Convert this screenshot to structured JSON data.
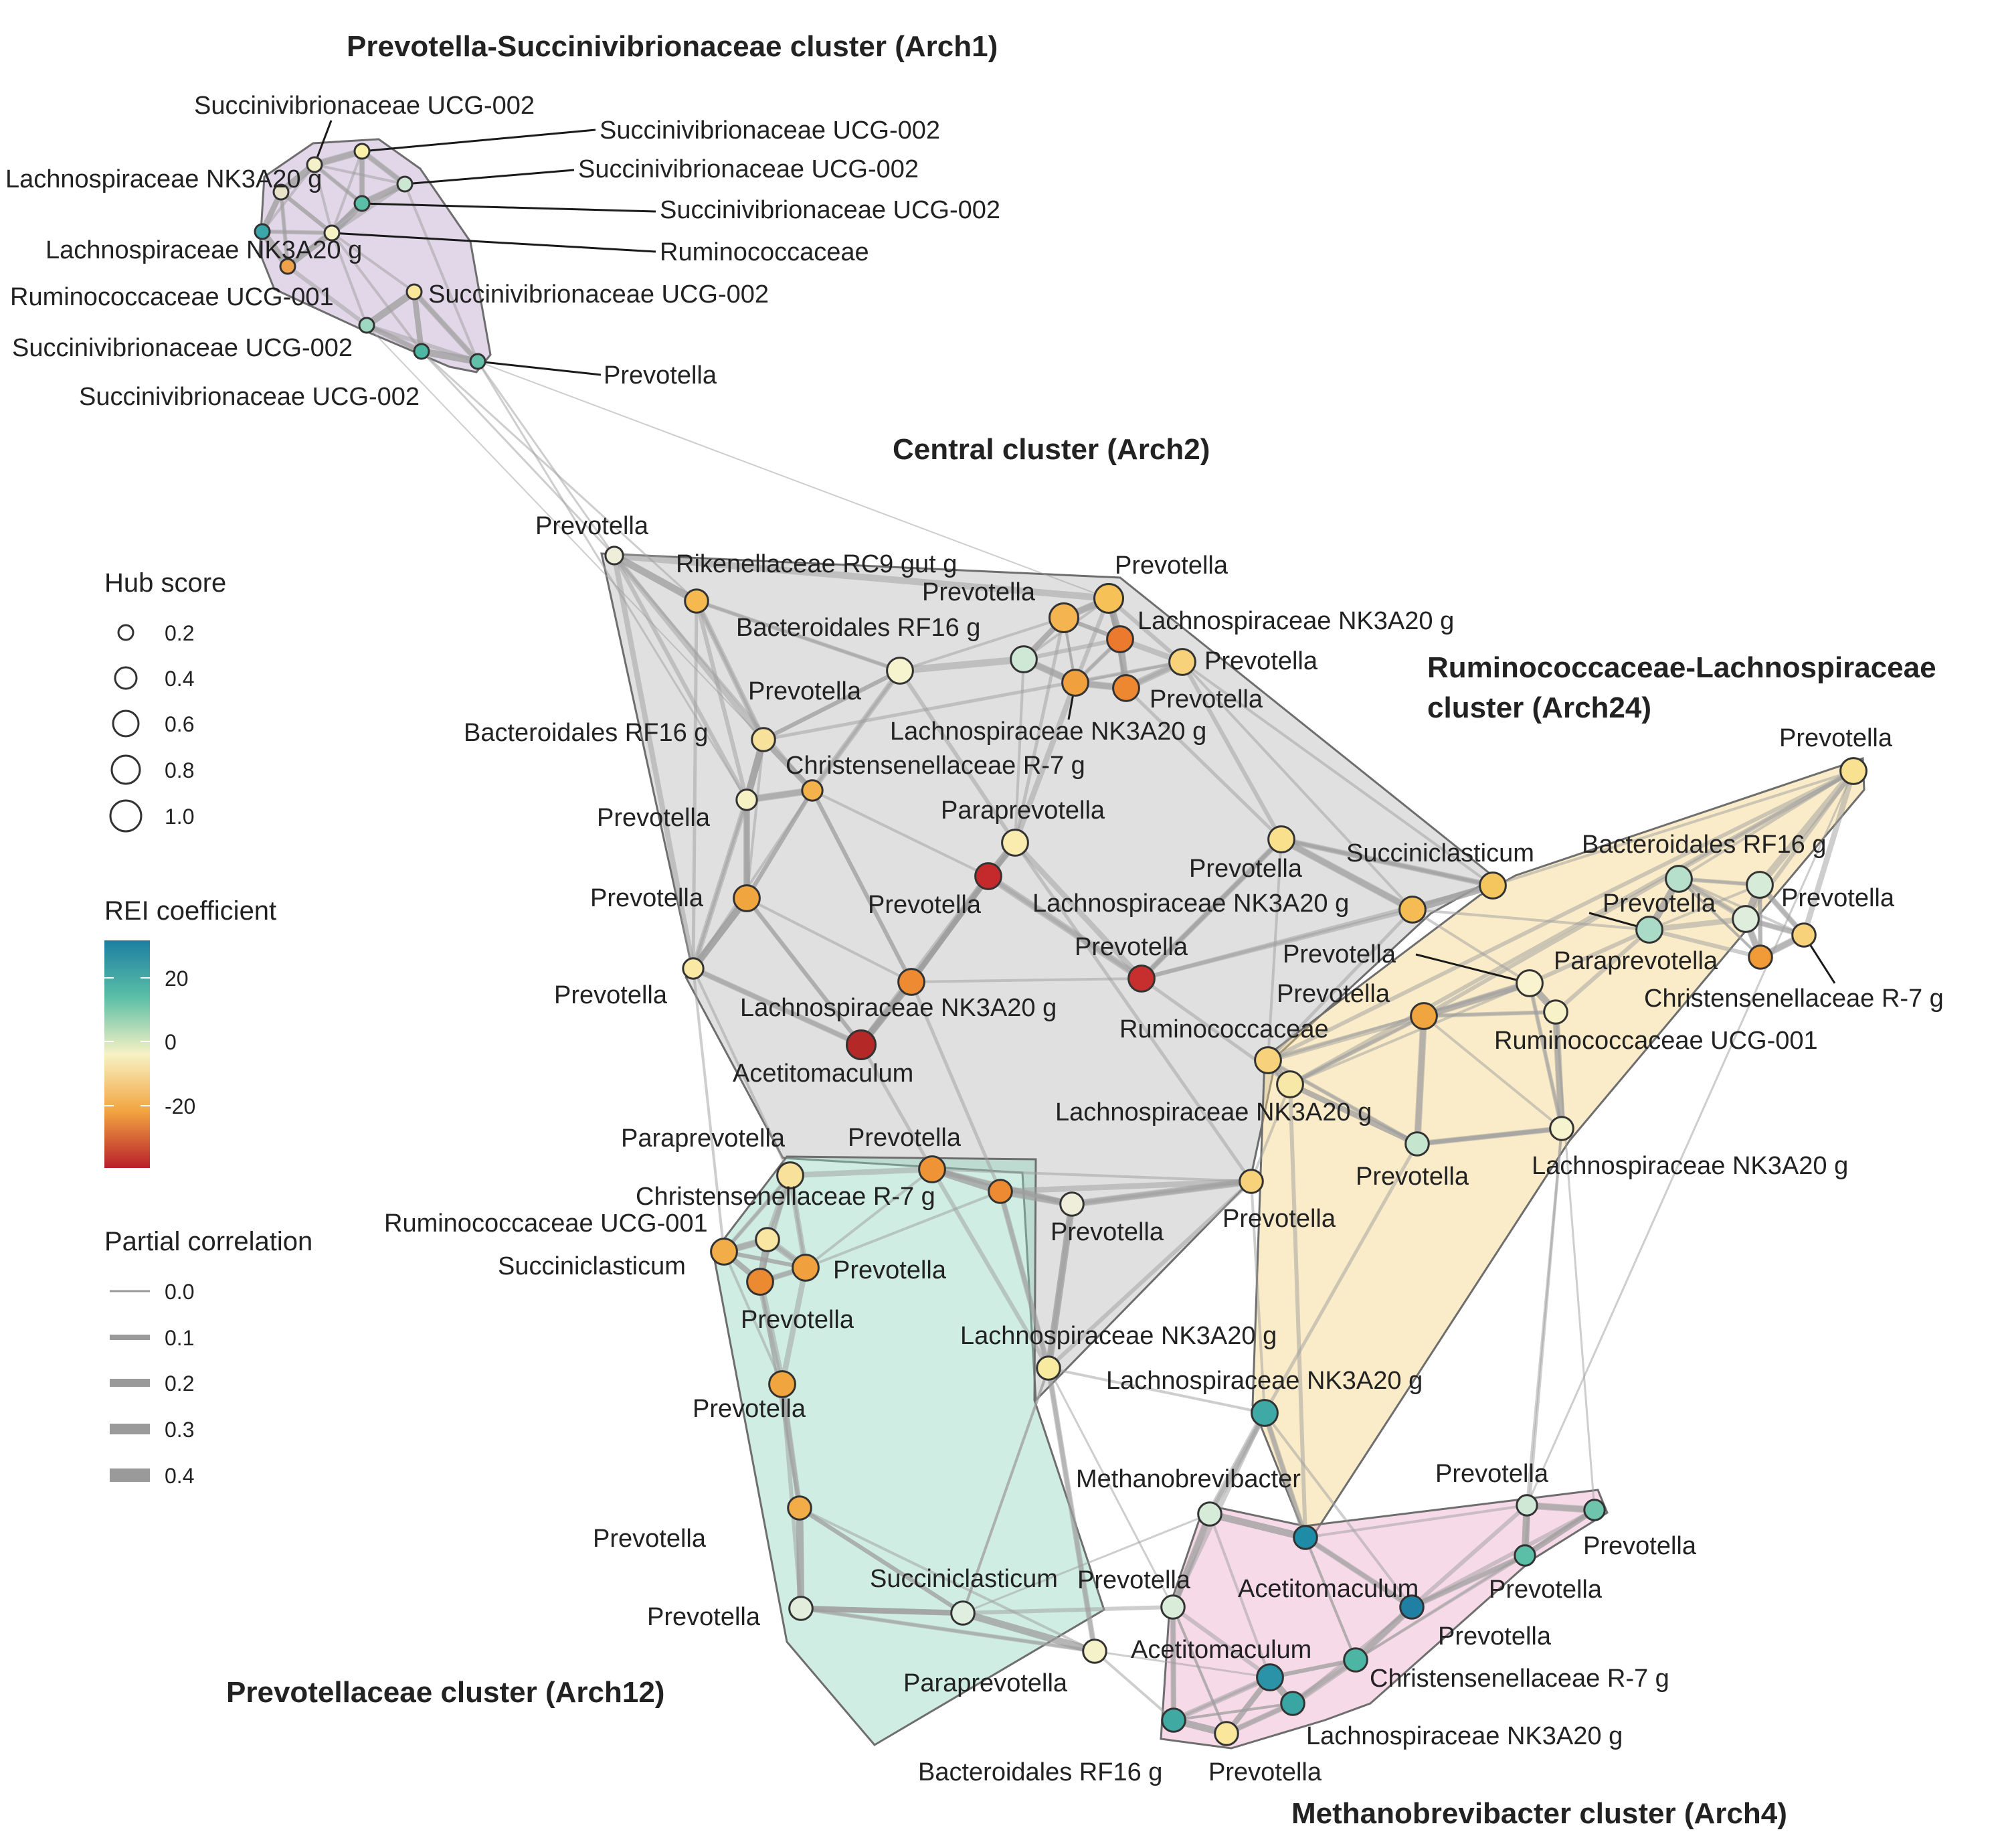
{
  "clusters": [
    {
      "id": "arch1",
      "title": "Prevotella-Succinivibrionaceae cluster (Arch1)",
      "fill": "#b9a0c9"
    },
    {
      "id": "arch2",
      "title": "Central cluster (Arch2)",
      "fill": "#b4b4b4"
    },
    {
      "id": "arch24",
      "title": "Ruminococcaceae-Lachnospiraceae cluster (Arch24)",
      "fill": "#f2d27e"
    },
    {
      "id": "arch12",
      "title": "Prevotellaceae cluster (Arch12)",
      "fill": "#8fd3bf"
    },
    {
      "id": "arch4",
      "title": "Methanobrevibacter cluster (Arch4)",
      "fill": "#eba6c8"
    }
  ],
  "nodes": [
    {
      "id": "a1n1",
      "cluster": "arch1",
      "label": "Succinivibrionaceae UCG-002",
      "color": "#f4f0c8",
      "hub": 0.15
    },
    {
      "id": "a1n2",
      "cluster": "arch1",
      "label": "Succinivibrionaceae UCG-002",
      "color": "#fbf1a8",
      "hub": 0.15
    },
    {
      "id": "a1n3",
      "cluster": "arch1",
      "label": "Succinivibrionaceae UCG-002",
      "color": "#cde8d2",
      "hub": 0.15
    },
    {
      "id": "a1n4",
      "cluster": "arch1",
      "label": "Succinivibrionaceae UCG-002",
      "color": "#5bbfa7",
      "hub": 0.15
    },
    {
      "id": "a1n5",
      "cluster": "arch1",
      "label": "Lachnospiraceae NK3A20 g",
      "color": "#e8e2c8",
      "hub": 0.15
    },
    {
      "id": "a1n6",
      "cluster": "arch1",
      "label": "Lachnospiraceae NK3A20 g",
      "color": "#3aa6a9",
      "hub": 0.15
    },
    {
      "id": "a1n7",
      "cluster": "arch1",
      "label": "Ruminococcaceae",
      "color": "#f7f2c4",
      "hub": 0.15
    },
    {
      "id": "a1n8",
      "cluster": "arch1",
      "label": "Ruminococcaceae UCG-001",
      "color": "#f0a24a",
      "hub": 0.15
    },
    {
      "id": "a1n9",
      "cluster": "arch1",
      "label": "Succinivibrionaceae UCG-002",
      "color": "#fbe79c",
      "hub": 0.15
    },
    {
      "id": "a1n10",
      "cluster": "arch1",
      "label": "Succinivibrionaceae UCG-002",
      "color": "#9ed8c2",
      "hub": 0.15
    },
    {
      "id": "a1n11",
      "cluster": "arch1",
      "label": "Succinivibrionaceae UCG-002",
      "color": "#4eb7a4",
      "hub": 0.15
    },
    {
      "id": "a1n12",
      "cluster": "arch1",
      "label": "Prevotella",
      "color": "#63c0a8",
      "hub": 0.15
    },
    {
      "id": "a2n1",
      "cluster": "arch2",
      "label": "Prevotella",
      "color": "#eeeedb",
      "hub": 0.2
    },
    {
      "id": "a2n2",
      "cluster": "arch2",
      "label": "Rikenellaceae RC9 gut g",
      "color": "#f5b94f",
      "hub": 0.3
    },
    {
      "id": "a2n3",
      "cluster": "arch2",
      "label": "Prevotella",
      "color": "#f6c257",
      "hub": 0.4
    },
    {
      "id": "a2n4",
      "cluster": "arch2",
      "label": "Prevotella",
      "color": "#f4b551",
      "hub": 0.4
    },
    {
      "id": "a2n5",
      "cluster": "arch2",
      "label": "Lachnospiraceae NK3A20 g",
      "color": "#eb7a2e",
      "hub": 0.35
    },
    {
      "id": "a2n6",
      "cluster": "arch2",
      "label": "Bacteroidales RF16 g",
      "color": "#cfe8d6",
      "hub": 0.35
    },
    {
      "id": "a2n7",
      "cluster": "arch2",
      "label": "Prevotella",
      "color": "#f8d27a",
      "hub": 0.35
    },
    {
      "id": "a2n8",
      "cluster": "arch2",
      "label": "Lachnospiraceae NK3A20 g",
      "color": "#f0a03d",
      "hub": 0.35
    },
    {
      "id": "a2n9",
      "cluster": "arch2",
      "label": "Prevotella",
      "color": "#ee8830",
      "hub": 0.35
    },
    {
      "id": "a2n10",
      "cluster": "arch2",
      "label": "Prevotella",
      "color": "#f6f3cf",
      "hub": 0.35
    },
    {
      "id": "a2n11",
      "cluster": "arch2",
      "label": "Bacteroidales RF16 g",
      "color": "#f8e19a",
      "hub": 0.3
    },
    {
      "id": "a2n12",
      "cluster": "arch2",
      "label": "Christensenellaceae R-7 g",
      "color": "#f3b24c",
      "hub": 0.25
    },
    {
      "id": "a2n13",
      "cluster": "arch2",
      "label": "Prevotella",
      "color": "#f7f2c4",
      "hub": 0.25
    },
    {
      "id": "a2n14",
      "cluster": "arch2",
      "label": "Paraprevotella",
      "color": "#faecae",
      "hub": 0.35
    },
    {
      "id": "a2n15",
      "cluster": "arch2",
      "label": "Prevotella",
      "color": "#c42a2c",
      "hub": 0.35
    },
    {
      "id": "a2n16",
      "cluster": "arch2",
      "label": "Prevotella",
      "color": "#f0a53f",
      "hub": 0.35
    },
    {
      "id": "a2n17",
      "cluster": "arch2",
      "label": "Prevotella",
      "color": "#fae9a5",
      "hub": 0.25
    },
    {
      "id": "a2n18",
      "cluster": "arch2",
      "label": "Prevotella",
      "color": "#f8e08c",
      "hub": 0.35
    },
    {
      "id": "a2n19",
      "cluster": "arch2",
      "label": "Succiniclasticum",
      "color": "#f6c65e",
      "hub": 0.35
    },
    {
      "id": "a2n20",
      "cluster": "arch2",
      "label": "Lachnospiraceae NK3A20 g",
      "color": "#f4bc52",
      "hub": 0.35
    },
    {
      "id": "a2n21",
      "cluster": "arch2",
      "label": "Prevotella",
      "color": "#c62f2d",
      "hub": 0.35
    },
    {
      "id": "a2n22",
      "cluster": "arch2",
      "label": "Lachnospiraceae NK3A20 g",
      "color": "#ed8a32",
      "hub": 0.35
    },
    {
      "id": "a2n23",
      "cluster": "arch2",
      "label": "Acetitomaculum",
      "color": "#b52828",
      "hub": 0.4
    },
    {
      "id": "a24n1",
      "cluster": "arch24",
      "label": "Prevotella",
      "color": "#f8e191",
      "hub": 0.35
    },
    {
      "id": "a24n2",
      "cluster": "arch24",
      "label": "Bacteroidales RF16 g",
      "color": "#b7e0cc",
      "hub": 0.35
    },
    {
      "id": "a24n3",
      "cluster": "arch24",
      "label": "Prevotella",
      "color": "#d6ebd8",
      "hub": 0.35
    },
    {
      "id": "a24n4",
      "cluster": "arch24",
      "label": "Prevotella",
      "color": "#a9dbc6",
      "hub": 0.35
    },
    {
      "id": "a24n5",
      "cluster": "arch24",
      "label": "Prevotella",
      "color": "#dfeedc",
      "hub": 0.35
    },
    {
      "id": "a24n6",
      "cluster": "arch24",
      "label": "Christensenellaceae R-7 g",
      "color": "#f8d27a",
      "hub": 0.3
    },
    {
      "id": "a24n7",
      "cluster": "arch24",
      "label": "Paraprevotella",
      "color": "#f09a38",
      "hub": 0.3
    },
    {
      "id": "a24n8",
      "cluster": "arch24",
      "label": "Prevotella",
      "color": "#f9f4cf",
      "hub": 0.35
    },
    {
      "id": "a24n9",
      "cluster": "arch24",
      "label": "Prevotella",
      "color": "#f0a53f",
      "hub": 0.35
    },
    {
      "id": "a24n10",
      "cluster": "arch24",
      "label": "Ruminococcaceae UCG-001",
      "color": "#f7f2c8",
      "hub": 0.3
    },
    {
      "id": "a24n11",
      "cluster": "arch24",
      "label": "Ruminococcaceae",
      "color": "#f8d27a",
      "hub": 0.35
    },
    {
      "id": "a24n12",
      "cluster": "arch24",
      "label": "Lachnospiraceae NK3A20 g",
      "color": "#f8e8a8",
      "hub": 0.35
    },
    {
      "id": "a24n13",
      "cluster": "arch24",
      "label": "Prevotella",
      "color": "#c6e5cf",
      "hub": 0.3
    },
    {
      "id": "a24n14",
      "cluster": "arch24",
      "label": "Lachnospiraceae NK3A20 g",
      "color": "#f6f3cf",
      "hub": 0.3
    },
    {
      "id": "a12n1",
      "cluster": "arch12",
      "label": "Paraprevotella",
      "color": "#f8e19a",
      "hub": 0.35
    },
    {
      "id": "a12n2",
      "cluster": "arch12",
      "label": "Prevotella",
      "color": "#ee9336",
      "hub": 0.35
    },
    {
      "id": "a12n3",
      "cluster": "arch12",
      "label": "Christensenellaceae R-7 g",
      "color": "#ee8a32",
      "hub": 0.3
    },
    {
      "id": "a12n4",
      "cluster": "arch12",
      "label": "Ruminococcaceae UCG-001",
      "color": "#f8e6a2",
      "hub": 0.3
    },
    {
      "id": "a12n5",
      "cluster": "arch12",
      "label": "Succiniclasticum",
      "color": "#f3ad48",
      "hub": 0.35
    },
    {
      "id": "a12n6",
      "cluster": "arch12",
      "label": "Prevotella",
      "color": "#f0a03d",
      "hub": 0.35
    },
    {
      "id": "a12n7",
      "cluster": "arch12",
      "label": "Prevotella",
      "color": "#ec8a31",
      "hub": 0.35
    },
    {
      "id": "a12n8",
      "cluster": "arch12",
      "label": "Prevotella",
      "color": "#eeeedb",
      "hub": 0.3
    },
    {
      "id": "a12n9",
      "cluster": "arch12",
      "label": "Prevotella",
      "color": "#f8d27a",
      "hub": 0.3
    },
    {
      "id": "a12n10",
      "cluster": "arch12",
      "label": "Prevotella",
      "color": "#f0a53f",
      "hub": 0.35
    },
    {
      "id": "a12n11",
      "cluster": "arch12",
      "label": "Lachnospiraceae NK3A20 g",
      "color": "#f8ea9e",
      "hub": 0.3
    },
    {
      "id": "a12n12",
      "cluster": "arch12",
      "label": "Prevotella",
      "color": "#f3ad48",
      "hub": 0.3
    },
    {
      "id": "a12n13",
      "cluster": "arch12",
      "label": "Prevotella",
      "color": "#e2eddb",
      "hub": 0.3
    },
    {
      "id": "a12n14",
      "cluster": "arch12",
      "label": "Succiniclasticum",
      "color": "#dfeede",
      "hub": 0.3
    },
    {
      "id": "a12n15",
      "cluster": "arch12",
      "label": "Paraprevotella",
      "color": "#f5f2ca",
      "hub": 0.3
    },
    {
      "id": "a4n1",
      "cluster": "arch4",
      "label": "Lachnospiraceae NK3A20 g",
      "color": "#3ea9a5",
      "hub": 0.35
    },
    {
      "id": "a4n2",
      "cluster": "arch4",
      "label": "Methanobrevibacter",
      "color": "#d6ebd8",
      "hub": 0.3
    },
    {
      "id": "a4n3",
      "cluster": "arch4",
      "label": "Acetitomaculum",
      "color": "#1e8ba7",
      "hub": 0.3
    },
    {
      "id": "a4n4",
      "cluster": "arch4",
      "label": "Prevotella",
      "color": "#d9ecd9",
      "hub": 0.3
    },
    {
      "id": "a4n5",
      "cluster": "arch4",
      "label": "Prevotella",
      "color": "#cfe8d6",
      "hub": 0.25
    },
    {
      "id": "a4n6",
      "cluster": "arch4",
      "label": "Prevotella",
      "color": "#6ec4ac",
      "hub": 0.25
    },
    {
      "id": "a4n7",
      "cluster": "arch4",
      "label": "Prevotella",
      "color": "#5bbfa7",
      "hub": 0.25
    },
    {
      "id": "a4n8",
      "cluster": "arch4",
      "label": "Prevotella",
      "color": "#1f80a3",
      "hub": 0.3
    },
    {
      "id": "a4n9",
      "cluster": "arch4",
      "label": "Acetitomaculum",
      "color": "#2b93a8",
      "hub": 0.35
    },
    {
      "id": "a4n10",
      "cluster": "arch4",
      "label": "Christensenellaceae R-7 g",
      "color": "#4db5a4",
      "hub": 0.3
    },
    {
      "id": "a4n11",
      "cluster": "arch4",
      "label": "Lachnospiraceae NK3A20 g",
      "color": "#3aa6a3",
      "hub": 0.3
    },
    {
      "id": "a4n12",
      "cluster": "arch4",
      "label": "Bacteroidales RF16 g",
      "color": "#3fa9a2",
      "hub": 0.3
    },
    {
      "id": "a4n13",
      "cluster": "arch4",
      "label": "Prevotella",
      "color": "#fbe79c",
      "hub": 0.3
    }
  ],
  "legend": {
    "hub_score": {
      "title": "Hub score",
      "values": [
        "0.2",
        "0.4",
        "0.6",
        "0.8",
        "1.0"
      ]
    },
    "rei": {
      "title": "REI coefficient",
      "ticks": [
        "20",
        "0",
        "-20"
      ],
      "colors": [
        "#1d7fa1",
        "#5bbfa7",
        "#f7f2c4",
        "#f2a541",
        "#b91f2b"
      ]
    },
    "partial_correlation": {
      "title": "Partial correlation",
      "values": [
        "0.0",
        "0.1",
        "0.2",
        "0.3",
        "0.4"
      ]
    }
  }
}
